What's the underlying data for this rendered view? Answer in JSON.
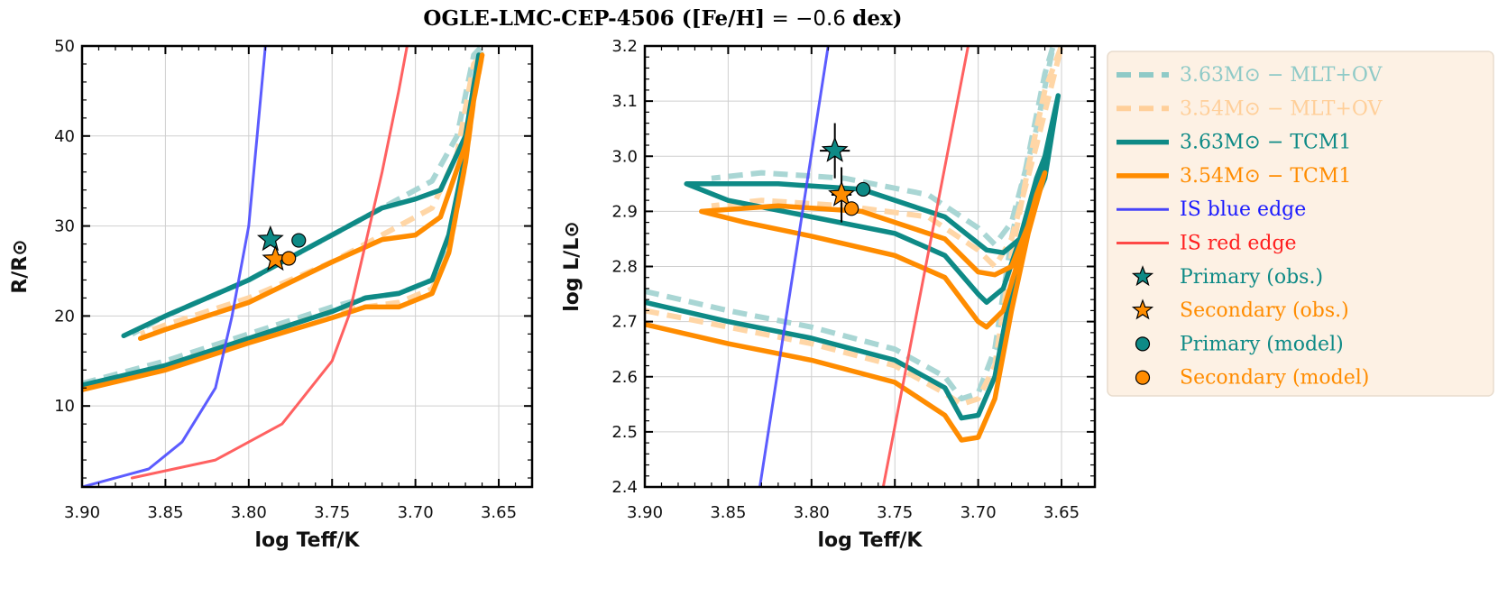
{
  "title": {
    "main": "OGLE-LMC-CEP-4506 ([Fe/H]",
    "eq": " = −0.6 ",
    "unit": "dex)"
  },
  "colors": {
    "teal": "#0e8a86",
    "orange": "#ff8c00",
    "teal_light": "#a9d6d4",
    "orange_light": "#ffd6a6",
    "blue_edge": "#4a4aff",
    "red_edge": "#ff5050",
    "legend_bg": "#fdf1e4"
  },
  "legend": [
    {
      "label": "3.63M⊙ − MLT+OV",
      "color": "#8fcac7",
      "style": "dashed"
    },
    {
      "label": "3.54M⊙ − MLT+OV",
      "color": "#ffcf99",
      "style": "dashed"
    },
    {
      "label": "3.63M⊙ − TCM1",
      "color": "#0e8a86",
      "style": "solid"
    },
    {
      "label": "3.54M⊙ − TCM1",
      "color": "#ff8c00",
      "style": "solid"
    },
    {
      "label": "IS blue edge",
      "color": "#1a1aff",
      "style": "thin"
    },
    {
      "label": "IS red edge",
      "color": "#ff2020",
      "style": "thin"
    },
    {
      "label": "Primary (obs.)",
      "color": "#0e8a86",
      "style": "star"
    },
    {
      "label": "Secondary (obs.)",
      "color": "#ff8c00",
      "style": "star"
    },
    {
      "label": "Primary (model)",
      "color": "#0e8a86",
      "style": "circle"
    },
    {
      "label": "Secondary (model)",
      "color": "#ff8c00",
      "style": "circle"
    }
  ],
  "chart_data": [
    {
      "type": "line",
      "xlabel": "log Teff/K",
      "ylabel": "R/R⊙",
      "xlim": [
        3.9,
        3.63
      ],
      "ylim": [
        1,
        50
      ],
      "xticks": [
        "3.90",
        "3.85",
        "3.80",
        "3.75",
        "3.70",
        "3.65"
      ],
      "yticks": [
        "10",
        "20",
        "30",
        "40",
        "50"
      ],
      "grid": true,
      "series": [
        {
          "name": "3.63M⊙ − MLT+OV",
          "color": "#a9d6d4",
          "style": "dashed",
          "points": [
            [
              3.9,
              12.5
            ],
            [
              3.85,
              15
            ],
            [
              3.8,
              18
            ],
            [
              3.75,
              21
            ],
            [
              3.73,
              22
            ],
            [
              3.71,
              22.5
            ],
            [
              3.69,
              24
            ],
            [
              3.68,
              28
            ],
            [
              3.67,
              38
            ],
            [
              3.665,
              45
            ],
            [
              3.66,
              50
            ],
            [
              3.665,
              49
            ],
            [
              3.675,
              40
            ],
            [
              3.69,
              35
            ],
            [
              3.71,
              33
            ],
            [
              3.75,
              29
            ],
            [
              3.8,
              24
            ],
            [
              3.85,
              20
            ],
            [
              3.87,
              18
            ]
          ]
        },
        {
          "name": "3.54M⊙ − MLT+OV",
          "color": "#ffd6a6",
          "style": "dashed",
          "points": [
            [
              3.9,
              12
            ],
            [
              3.85,
              14.5
            ],
            [
              3.8,
              17.5
            ],
            [
              3.75,
              20.5
            ],
            [
              3.73,
              21
            ],
            [
              3.71,
              21.5
            ],
            [
              3.69,
              23
            ],
            [
              3.68,
              27
            ],
            [
              3.67,
              37
            ],
            [
              3.665,
              44
            ],
            [
              3.66,
              49
            ],
            [
              3.665,
              48
            ],
            [
              3.675,
              38
            ],
            [
              3.69,
              32
            ],
            [
              3.71,
              30
            ],
            [
              3.75,
              26
            ],
            [
              3.8,
              22
            ],
            [
              3.85,
              19
            ],
            [
              3.865,
              18
            ]
          ]
        },
        {
          "name": "3.63M⊙ − TCM1",
          "color": "#0e8a86",
          "style": "solid",
          "points": [
            [
              3.9,
              12.3
            ],
            [
              3.85,
              14.5
            ],
            [
              3.8,
              17.5
            ],
            [
              3.75,
              20.5
            ],
            [
              3.73,
              22
            ],
            [
              3.71,
              22.5
            ],
            [
              3.69,
              24
            ],
            [
              3.68,
              29
            ],
            [
              3.67,
              38
            ],
            [
              3.665,
              45
            ],
            [
              3.662,
              49
            ],
            [
              3.67,
              40
            ],
            [
              3.685,
              34
            ],
            [
              3.7,
              33
            ],
            [
              3.72,
              32
            ],
            [
              3.75,
              29
            ],
            [
              3.8,
              24
            ],
            [
              3.85,
              20
            ],
            [
              3.875,
              17.8
            ]
          ]
        },
        {
          "name": "3.54M⊙ − TCM1",
          "color": "#ff8c00",
          "style": "solid",
          "points": [
            [
              3.9,
              11.8
            ],
            [
              3.85,
              14
            ],
            [
              3.8,
              17
            ],
            [
              3.75,
              19.8
            ],
            [
              3.73,
              21
            ],
            [
              3.71,
              21
            ],
            [
              3.69,
              22.5
            ],
            [
              3.68,
              27
            ],
            [
              3.67,
              37
            ],
            [
              3.665,
              44
            ],
            [
              3.66,
              49
            ],
            [
              3.67,
              39
            ],
            [
              3.685,
              31
            ],
            [
              3.7,
              29
            ],
            [
              3.72,
              28.5
            ],
            [
              3.75,
              26
            ],
            [
              3.8,
              21.5
            ],
            [
              3.85,
              18.5
            ],
            [
              3.865,
              17.5
            ]
          ]
        },
        {
          "name": "IS blue edge",
          "color": "#4a4aff",
          "style": "thin",
          "points": [
            [
              3.9,
              1
            ],
            [
              3.86,
              3
            ],
            [
              3.84,
              6
            ],
            [
              3.82,
              12
            ],
            [
              3.81,
              20
            ],
            [
              3.8,
              30
            ],
            [
              3.795,
              40
            ],
            [
              3.79,
              50
            ]
          ]
        },
        {
          "name": "IS red edge",
          "color": "#ff5050",
          "style": "thin",
          "points": [
            [
              3.87,
              2
            ],
            [
              3.82,
              4
            ],
            [
              3.78,
              8
            ],
            [
              3.75,
              15
            ],
            [
              3.74,
              20
            ],
            [
              3.73,
              28
            ],
            [
              3.72,
              36
            ],
            [
              3.71,
              45
            ],
            [
              3.705,
              50
            ]
          ]
        }
      ],
      "markers": [
        {
          "name": "Primary (obs.)",
          "shape": "star",
          "color": "#0e8a86",
          "x": 3.787,
          "y": 28.5
        },
        {
          "name": "Secondary (obs.)",
          "shape": "star",
          "color": "#ff8c00",
          "x": 3.784,
          "y": 26.3
        },
        {
          "name": "Primary (model)",
          "shape": "circle",
          "color": "#0e8a86",
          "x": 3.77,
          "y": 28.4
        },
        {
          "name": "Secondary (model)",
          "shape": "circle",
          "color": "#ff8c00",
          "x": 3.776,
          "y": 26.4
        }
      ]
    },
    {
      "type": "line",
      "xlabel": "log Teff/K",
      "ylabel": "log L/L⊙",
      "xlim": [
        3.9,
        3.63
      ],
      "ylim": [
        2.4,
        3.2
      ],
      "xticks": [
        "3.90",
        "3.85",
        "3.80",
        "3.75",
        "3.70",
        "3.65"
      ],
      "yticks": [
        "2.4",
        "2.5",
        "2.6",
        "2.7",
        "2.8",
        "2.9",
        "3.0",
        "3.1",
        "3.2"
      ],
      "grid": true,
      "series": [
        {
          "name": "3.63M⊙ − MLT+OV",
          "color": "#a9d6d4",
          "style": "dashed",
          "points": [
            [
              3.9,
              2.755
            ],
            [
              3.85,
              2.72
            ],
            [
              3.8,
              2.69
            ],
            [
              3.75,
              2.65
            ],
            [
              3.72,
              2.6
            ],
            [
              3.71,
              2.56
            ],
            [
              3.7,
              2.57
            ],
            [
              3.69,
              2.65
            ],
            [
              3.68,
              2.85
            ],
            [
              3.67,
              3.0
            ],
            [
              3.66,
              3.15
            ],
            [
              3.655,
              3.2
            ],
            [
              3.665,
              3.05
            ],
            [
              3.68,
              2.88
            ],
            [
              3.69,
              2.84
            ],
            [
              3.7,
              2.87
            ],
            [
              3.73,
              2.93
            ],
            [
              3.78,
              2.96
            ],
            [
              3.83,
              2.97
            ],
            [
              3.86,
              2.96
            ]
          ]
        },
        {
          "name": "3.54M⊙ − MLT+OV",
          "color": "#ffd6a6",
          "style": "dashed",
          "points": [
            [
              3.9,
              2.72
            ],
            [
              3.85,
              2.69
            ],
            [
              3.8,
              2.66
            ],
            [
              3.75,
              2.62
            ],
            [
              3.72,
              2.57
            ],
            [
              3.71,
              2.55
            ],
            [
              3.7,
              2.56
            ],
            [
              3.69,
              2.62
            ],
            [
              3.68,
              2.82
            ],
            [
              3.67,
              2.98
            ],
            [
              3.66,
              3.12
            ],
            [
              3.65,
              3.2
            ],
            [
              3.665,
              3.02
            ],
            [
              3.68,
              2.85
            ],
            [
              3.69,
              2.8
            ],
            [
              3.7,
              2.83
            ],
            [
              3.73,
              2.89
            ],
            [
              3.78,
              2.91
            ],
            [
              3.83,
              2.92
            ],
            [
              3.86,
              2.91
            ]
          ]
        },
        {
          "name": "3.63M⊙ − TCM1",
          "color": "#0e8a86",
          "style": "solid",
          "points": [
            [
              3.9,
              2.735
            ],
            [
              3.85,
              2.7
            ],
            [
              3.8,
              2.67
            ],
            [
              3.75,
              2.63
            ],
            [
              3.72,
              2.58
            ],
            [
              3.71,
              2.525
            ],
            [
              3.7,
              2.53
            ],
            [
              3.69,
              2.6
            ],
            [
              3.68,
              2.76
            ],
            [
              3.67,
              2.88
            ],
            [
              3.66,
              3.0
            ],
            [
              3.652,
              3.11
            ],
            [
              3.66,
              2.96
            ],
            [
              3.675,
              2.85
            ],
            [
              3.685,
              2.825
            ],
            [
              3.695,
              2.83
            ],
            [
              3.72,
              2.89
            ],
            [
              3.77,
              2.94
            ],
            [
              3.82,
              2.95
            ],
            [
              3.875,
              2.95
            ],
            [
              3.85,
              2.92
            ],
            [
              3.8,
              2.89
            ],
            [
              3.75,
              2.86
            ],
            [
              3.72,
              2.82
            ],
            [
              3.7,
              2.75
            ],
            [
              3.695,
              2.735
            ],
            [
              3.685,
              2.76
            ],
            [
              3.675,
              2.85
            ],
            [
              3.665,
              2.96
            ],
            [
              3.66,
              3.0
            ]
          ]
        },
        {
          "name": "3.54M⊙ − TCM1",
          "color": "#ff8c00",
          "style": "solid",
          "points": [
            [
              3.9,
              2.695
            ],
            [
              3.85,
              2.66
            ],
            [
              3.8,
              2.63
            ],
            [
              3.75,
              2.59
            ],
            [
              3.72,
              2.53
            ],
            [
              3.71,
              2.485
            ],
            [
              3.7,
              2.49
            ],
            [
              3.69,
              2.56
            ],
            [
              3.68,
              2.72
            ],
            [
              3.67,
              2.86
            ],
            [
              3.66,
              2.97
            ],
            [
              3.668,
              2.89
            ],
            [
              3.68,
              2.8
            ],
            [
              3.69,
              2.785
            ],
            [
              3.7,
              2.79
            ],
            [
              3.72,
              2.85
            ],
            [
              3.77,
              2.9
            ],
            [
              3.82,
              2.91
            ],
            [
              3.866,
              2.9
            ],
            [
              3.84,
              2.88
            ],
            [
              3.8,
              2.855
            ],
            [
              3.75,
              2.82
            ],
            [
              3.72,
              2.78
            ],
            [
              3.7,
              2.7
            ],
            [
              3.695,
              2.69
            ],
            [
              3.685,
              2.72
            ],
            [
              3.675,
              2.82
            ],
            [
              3.665,
              2.93
            ],
            [
              3.66,
              2.97
            ]
          ]
        },
        {
          "name": "IS blue edge",
          "color": "#4a4aff",
          "style": "thin",
          "points": [
            [
              3.831,
              2.4
            ],
            [
              3.79,
              3.2
            ]
          ]
        },
        {
          "name": "IS red edge",
          "color": "#ff5050",
          "style": "thin",
          "points": [
            [
              3.757,
              2.4
            ],
            [
              3.706,
              3.2
            ]
          ]
        }
      ],
      "markers": [
        {
          "name": "Primary (obs.)",
          "shape": "star",
          "color": "#0e8a86",
          "x": 3.786,
          "y": 3.01,
          "xerr": 0.009,
          "yerr": 0.05
        },
        {
          "name": "Secondary (obs.)",
          "shape": "star",
          "color": "#ff8c00",
          "x": 3.782,
          "y": 2.93,
          "xerr": 0.006,
          "yerr": 0.05
        },
        {
          "name": "Primary (model)",
          "shape": "circle",
          "color": "#0e8a86",
          "x": 3.769,
          "y": 2.94
        },
        {
          "name": "Secondary (model)",
          "shape": "circle",
          "color": "#ff8c00",
          "x": 3.776,
          "y": 2.905
        }
      ]
    }
  ]
}
